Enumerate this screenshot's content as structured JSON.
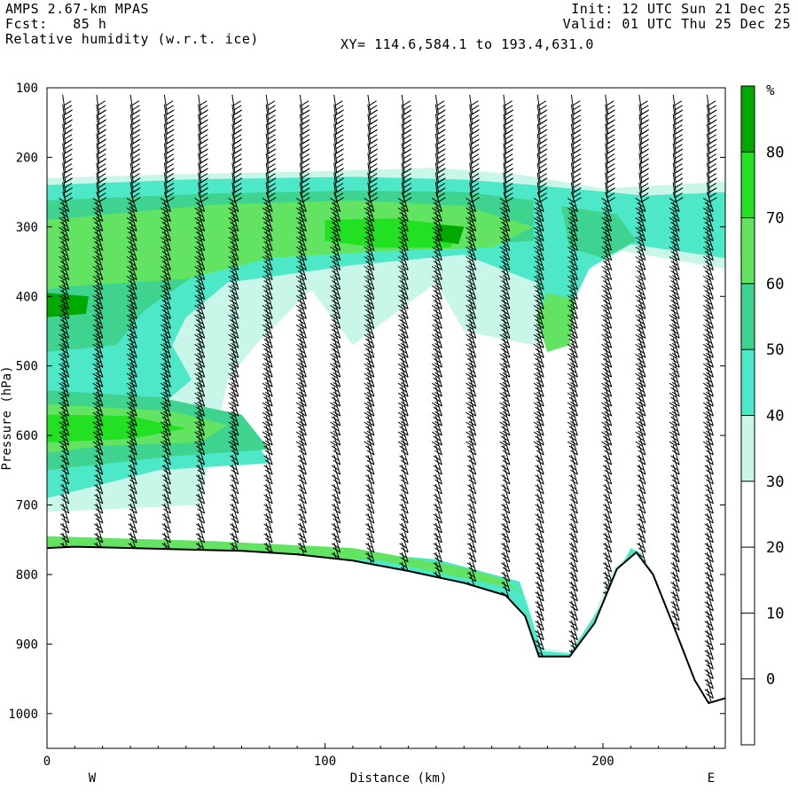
{
  "header": {
    "model": "AMPS 2.67-km MPAS",
    "forecast": "Fcst:   85 h",
    "field": "Relative humidity (w.r.t. ice)",
    "init": "Init: 12 UTC Sun 21 Dec 25",
    "valid": "Valid: 01 UTC Thu 25 Dec 25",
    "xy": "XY= 114.6,584.1 to 193.4,631.0"
  },
  "chart_data": {
    "type": "heatmap",
    "title": "Relative humidity (w.r.t. ice)",
    "xlabel": "Distance (km)",
    "ylabel": "Pressure (hPa)",
    "xlim": [
      0,
      244
    ],
    "ylim": [
      1050,
      100
    ],
    "x_ticks": [
      "0",
      "100",
      "200"
    ],
    "y_ticks": [
      "100",
      "200",
      "300",
      "400",
      "500",
      "600",
      "700",
      "800",
      "900",
      "1000"
    ],
    "left_label": "W",
    "right_label": "E",
    "colorbar": {
      "unit": "%",
      "tick_labels": [
        "80",
        "70",
        "60",
        "50",
        "40",
        "30",
        "20",
        "10",
        "0"
      ],
      "levels": [
        {
          "min": 80,
          "max": 90,
          "color": "#00a800"
        },
        {
          "min": 70,
          "max": 80,
          "color": "#22e022"
        },
        {
          "min": 60,
          "max": 70,
          "color": "#62e462"
        },
        {
          "min": 50,
          "max": 60,
          "color": "#3ed38f"
        },
        {
          "min": 40,
          "max": 50,
          "color": "#4de8c8"
        },
        {
          "min": 30,
          "max": 40,
          "color": "#c8f6e8"
        }
      ]
    },
    "terrain_surface_hPa": [
      [
        0,
        762
      ],
      [
        10,
        760
      ],
      [
        30,
        762
      ],
      [
        50,
        764
      ],
      [
        70,
        766
      ],
      [
        90,
        771
      ],
      [
        110,
        780
      ],
      [
        130,
        795
      ],
      [
        150,
        812
      ],
      [
        165,
        830
      ],
      [
        172,
        860
      ],
      [
        177,
        918
      ],
      [
        188,
        918
      ],
      [
        197,
        870
      ],
      [
        205,
        792
      ],
      [
        212,
        768
      ],
      [
        218,
        800
      ],
      [
        226,
        880
      ],
      [
        233,
        952
      ],
      [
        238,
        985
      ],
      [
        244,
        978
      ]
    ],
    "rh_regions": [
      {
        "level": 30,
        "points": [
          [
            0,
            230
          ],
          [
            40,
            225
          ],
          [
            100,
            220
          ],
          [
            140,
            215
          ],
          [
            170,
            225
          ],
          [
            200,
            245
          ],
          [
            244,
            235
          ],
          [
            244,
            360
          ],
          [
            200,
            330
          ],
          [
            185,
            430
          ],
          [
            175,
            470
          ],
          [
            150,
            450
          ],
          [
            140,
            380
          ],
          [
            110,
            470
          ],
          [
            95,
            390
          ],
          [
            75,
            470
          ],
          [
            65,
            520
          ],
          [
            55,
            700
          ],
          [
            0,
            710
          ]
        ]
      },
      {
        "level": 30,
        "points": [
          [
            0,
            745
          ],
          [
            60,
            752
          ],
          [
            120,
            768
          ],
          [
            160,
            800
          ],
          [
            172,
            830
          ],
          [
            178,
            905
          ],
          [
            188,
            912
          ],
          [
            196,
            865
          ],
          [
            204,
            790
          ],
          [
            212,
            763
          ],
          [
            218,
            795
          ],
          [
            224,
            870
          ],
          [
            230,
            910
          ],
          [
            222,
            860
          ],
          [
            214,
            780
          ],
          [
            206,
            805
          ],
          [
            198,
            880
          ],
          [
            190,
            925
          ],
          [
            176,
            925
          ],
          [
            168,
            850
          ],
          [
            150,
            820
          ],
          [
            110,
            790
          ],
          [
            60,
            770
          ],
          [
            0,
            770
          ]
        ]
      },
      {
        "level": 40,
        "points": [
          [
            0,
            240
          ],
          [
            50,
            232
          ],
          [
            110,
            228
          ],
          [
            150,
            232
          ],
          [
            175,
            240
          ],
          [
            215,
            255
          ],
          [
            244,
            250
          ],
          [
            244,
            345
          ],
          [
            210,
            325
          ],
          [
            195,
            360
          ],
          [
            188,
            420
          ],
          [
            180,
            460
          ],
          [
            176,
            380
          ],
          [
            150,
            340
          ],
          [
            110,
            355
          ],
          [
            80,
            372
          ],
          [
            65,
            380
          ],
          [
            50,
            430
          ],
          [
            45,
            470
          ],
          [
            52,
            520
          ],
          [
            40,
            560
          ],
          [
            70,
            575
          ],
          [
            80,
            640
          ],
          [
            40,
            650
          ],
          [
            0,
            690
          ]
        ]
      },
      {
        "level": 40,
        "points": [
          [
            0,
            748
          ],
          [
            80,
            758
          ],
          [
            140,
            778
          ],
          [
            170,
            810
          ],
          [
            178,
            910
          ],
          [
            188,
            914
          ],
          [
            200,
            840
          ],
          [
            210,
            762
          ],
          [
            214,
            770
          ],
          [
            204,
            810
          ],
          [
            196,
            880
          ],
          [
            186,
            924
          ],
          [
            174,
            920
          ],
          [
            165,
            840
          ],
          [
            130,
            800
          ],
          [
            80,
            776
          ],
          [
            0,
            770
          ]
        ]
      },
      {
        "level": 50,
        "points": [
          [
            0,
            262
          ],
          [
            60,
            252
          ],
          [
            110,
            248
          ],
          [
            150,
            250
          ],
          [
            175,
            262
          ],
          [
            175,
            320
          ],
          [
            140,
            330
          ],
          [
            110,
            335
          ],
          [
            80,
            345
          ],
          [
            55,
            365
          ],
          [
            35,
            420
          ],
          [
            25,
            470
          ],
          [
            0,
            480
          ]
        ]
      },
      {
        "level": 50,
        "points": [
          [
            0,
            535
          ],
          [
            40,
            545
          ],
          [
            70,
            570
          ],
          [
            80,
            620
          ],
          [
            45,
            630
          ],
          [
            0,
            650
          ]
        ]
      },
      {
        "level": 50,
        "points": [
          [
            185,
            270
          ],
          [
            205,
            282
          ],
          [
            212,
            320
          ],
          [
            200,
            345
          ],
          [
            188,
            330
          ]
        ]
      },
      {
        "level": 60,
        "points": [
          [
            0,
            290
          ],
          [
            60,
            268
          ],
          [
            110,
            262
          ],
          [
            150,
            270
          ],
          [
            175,
            300
          ],
          [
            160,
            330
          ],
          [
            120,
            335
          ],
          [
            80,
            345
          ],
          [
            50,
            375
          ],
          [
            10,
            385
          ],
          [
            0,
            390
          ]
        ]
      },
      {
        "level": 60,
        "points": [
          [
            0,
            555
          ],
          [
            45,
            565
          ],
          [
            65,
            585
          ],
          [
            55,
            610
          ],
          [
            20,
            615
          ],
          [
            0,
            625
          ]
        ]
      },
      {
        "level": 60,
        "points": [
          [
            180,
            395
          ],
          [
            190,
            405
          ],
          [
            188,
            470
          ],
          [
            180,
            480
          ],
          [
            176,
            430
          ]
        ]
      },
      {
        "level": 60,
        "points": [
          [
            0,
            745
          ],
          [
            60,
            752
          ],
          [
            110,
            762
          ],
          [
            150,
            790
          ],
          [
            165,
            808
          ],
          [
            172,
            830
          ],
          [
            168,
            820
          ],
          [
            120,
            780
          ],
          [
            60,
            770
          ],
          [
            0,
            768
          ]
        ]
      },
      {
        "level": 70,
        "points": [
          [
            100,
            290
          ],
          [
            125,
            288
          ],
          [
            150,
            300
          ],
          [
            145,
            330
          ],
          [
            120,
            330
          ],
          [
            100,
            320
          ]
        ]
      },
      {
        "level": 70,
        "points": [
          [
            0,
            570
          ],
          [
            30,
            572
          ],
          [
            50,
            590
          ],
          [
            30,
            605
          ],
          [
            0,
            610
          ]
        ]
      },
      {
        "level": 80,
        "points": [
          [
            0,
            395
          ],
          [
            15,
            400
          ],
          [
            14,
            425
          ],
          [
            0,
            430
          ]
        ]
      },
      {
        "level": 80,
        "points": [
          [
            141,
            297
          ],
          [
            150,
            300
          ],
          [
            148,
            325
          ],
          [
            140,
            320
          ]
        ]
      }
    ]
  }
}
